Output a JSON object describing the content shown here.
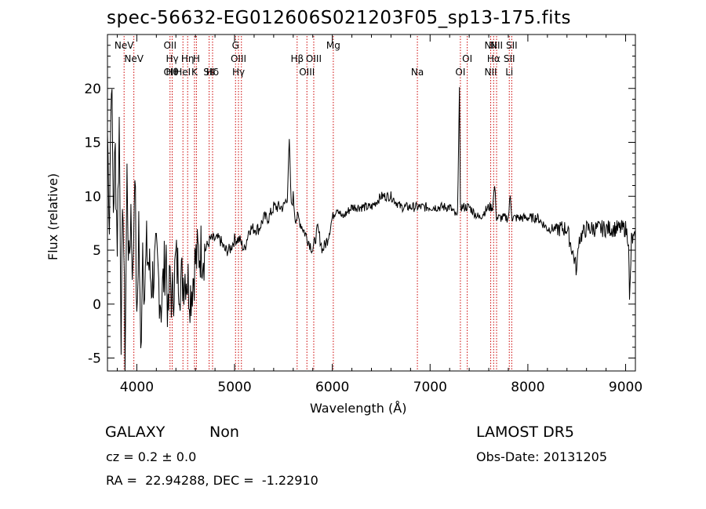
{
  "chart_data": {
    "type": "line",
    "title": "spec-56632-EG012606S021203F05_sp13-175.fits",
    "xlabel": "Wavelength (Å)",
    "ylabel": "Flux (relative)",
    "xlim": [
      3700,
      9100
    ],
    "ylim": [
      -6.2,
      25
    ],
    "xticks": [
      "4000",
      "5000",
      "6000",
      "7000",
      "8000",
      "9000"
    ],
    "yticks": [
      "-5",
      "0",
      "5",
      "10",
      "15",
      "20"
    ],
    "grid": false,
    "series": [
      {
        "x": [
          3700,
          3720,
          3740,
          3760,
          3780,
          3800,
          3820,
          3840,
          3860,
          3880,
          3900,
          3920,
          3940,
          3960,
          3980,
          4000,
          4020,
          4040,
          4060,
          4080,
          4100,
          4150,
          4200,
          4250,
          4300,
          4320,
          4340,
          4360,
          4400,
          4450,
          4500,
          4550,
          4600,
          4650,
          4700,
          4750,
          4800,
          4850,
          4900,
          4950,
          5000,
          5050,
          5100,
          5150,
          5200,
          5250,
          5300,
          5350,
          5400,
          5450,
          5500,
          5540,
          5560,
          5580,
          5600,
          5620,
          5650,
          5700,
          5750,
          5800,
          5850,
          5900,
          5950,
          6000,
          6050,
          6100,
          6200,
          6300,
          6400,
          6500,
          6600,
          6700,
          6800,
          6900,
          7000,
          7100,
          7200,
          7280,
          7300,
          7310,
          7320,
          7340,
          7400,
          7500,
          7600,
          7640,
          7660,
          7680,
          7700,
          7750,
          7800,
          7820,
          7840,
          7900,
          8000,
          8100,
          8200,
          8300,
          8400,
          8480,
          8500,
          8520,
          8600,
          8700,
          8800,
          8900,
          9000,
          9030,
          9040,
          9060,
          9100
        ],
        "y": [
          16,
          8,
          22,
          9,
          14,
          6,
          17,
          -2,
          10,
          -5,
          12,
          3,
          9,
          2,
          14,
          -3,
          8,
          -5,
          6,
          1,
          5,
          2,
          4,
          0,
          5,
          -2,
          3,
          0,
          4,
          2,
          3,
          1,
          4,
          5,
          5,
          6,
          6,
          6,
          5,
          5,
          6,
          6,
          5,
          7,
          7,
          7,
          8,
          8,
          9,
          9,
          9,
          10,
          15,
          9,
          10,
          8,
          8,
          7,
          6,
          5,
          7,
          5,
          6,
          8,
          9,
          8,
          9,
          9,
          9,
          10,
          10,
          9,
          9,
          9,
          9,
          9,
          9,
          8,
          20,
          9,
          9,
          9,
          9,
          8,
          9,
          9,
          11,
          8,
          8,
          8,
          8,
          10,
          8,
          8,
          8,
          8,
          7,
          7,
          7,
          4,
          3,
          6,
          7,
          7,
          7,
          7,
          7,
          6,
          0,
          6,
          6
        ]
      }
    ],
    "lines": [
      {
        "x": 3870,
        "top": "NeV",
        "bottom": ""
      },
      {
        "x": 3970,
        "top": "NeV",
        "bottom": ""
      },
      {
        "x": 4340,
        "top": "OII",
        "bottom": "OII"
      },
      {
        "x": 4362,
        "top": "Hγ",
        "bottom": "Hθ"
      },
      {
        "x": 4472,
        "top": "",
        "bottom": "HeI"
      },
      {
        "x": 4520,
        "top": "Hη",
        "bottom": ""
      },
      {
        "x": 4590,
        "top": "",
        "bottom": "K"
      },
      {
        "x": 4610,
        "top": "H",
        "bottom": ""
      },
      {
        "x": 4740,
        "top": "",
        "bottom": "SII"
      },
      {
        "x": 4775,
        "top": "",
        "bottom": "Hδ"
      },
      {
        "x": 5010,
        "top": "G",
        "bottom": ""
      },
      {
        "x": 5040,
        "top": "OIII",
        "bottom": "Hγ"
      },
      {
        "x": 5070,
        "top": "",
        "bottom": ""
      },
      {
        "x": 5640,
        "top": "Hβ",
        "bottom": ""
      },
      {
        "x": 5740,
        "top": "",
        "bottom": "OIII"
      },
      {
        "x": 5810,
        "top": "OIII",
        "bottom": ""
      },
      {
        "x": 6010,
        "top": "Mg",
        "bottom": ""
      },
      {
        "x": 6870,
        "top": "",
        "bottom": "Na"
      },
      {
        "x": 7310,
        "top": "",
        "bottom": "OI"
      },
      {
        "x": 7380,
        "top": "OI",
        "bottom": ""
      },
      {
        "x": 7620,
        "top": "NII",
        "bottom": "NII"
      },
      {
        "x": 7650,
        "top": "Hα",
        "bottom": ""
      },
      {
        "x": 7680,
        "top": "NII",
        "bottom": ""
      },
      {
        "x": 7810,
        "top": "SII",
        "bottom": "Li"
      },
      {
        "x": 7835,
        "top": "SII",
        "bottom": ""
      }
    ],
    "annotations": {
      "class_label": "GALAXY",
      "subclass_label": "Non",
      "cz_label": "cz = 0.2 ± 0.0",
      "radec_label": "RA =  22.94288, DEC =  -1.22910",
      "survey_label": "LAMOST DR5",
      "obsdate_label": "Obs-Date: 20131205"
    },
    "colors": {
      "spectrum": "#000000",
      "line_marker": "#cc0000",
      "axes": "#000000"
    }
  }
}
